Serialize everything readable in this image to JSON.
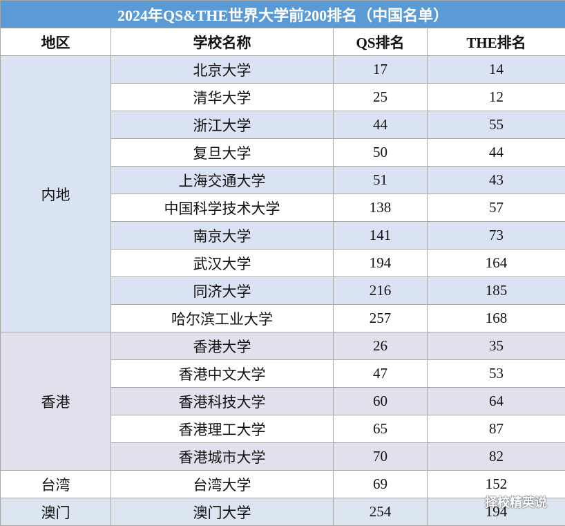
{
  "title": "2024年QS&THE世界大学前200排名（中国名单）",
  "headers": [
    "地区",
    "学校名称",
    "QS排名",
    "THE排名"
  ],
  "groups": [
    {
      "region": "内地",
      "rows": [
        [
          "北京大学",
          17,
          14
        ],
        [
          "清华大学",
          25,
          12
        ],
        [
          "浙江大学",
          44,
          55
        ],
        [
          "复旦大学",
          50,
          44
        ],
        [
          "上海交通大学",
          51,
          43
        ],
        [
          "中国科学技术大学",
          138,
          57
        ],
        [
          "南京大学",
          141,
          73
        ],
        [
          "武汉大学",
          194,
          164
        ],
        [
          "同济大学",
          216,
          185
        ],
        [
          "哈尔滨工业大学",
          257,
          168
        ]
      ]
    },
    {
      "region": "香港",
      "rows": [
        [
          "香港大学",
          26,
          35
        ],
        [
          "香港中文大学",
          47,
          53
        ],
        [
          "香港科技大学",
          60,
          64
        ],
        [
          "香港理工大学",
          65,
          87
        ],
        [
          "香港城市大学",
          70,
          82
        ]
      ]
    },
    {
      "region": "台湾",
      "rows": [
        [
          "台湾大学",
          69,
          152
        ]
      ]
    },
    {
      "region": "澳门",
      "rows": [
        [
          "澳门大学",
          254,
          194
        ]
      ]
    }
  ],
  "watermark": "择校精英说"
}
